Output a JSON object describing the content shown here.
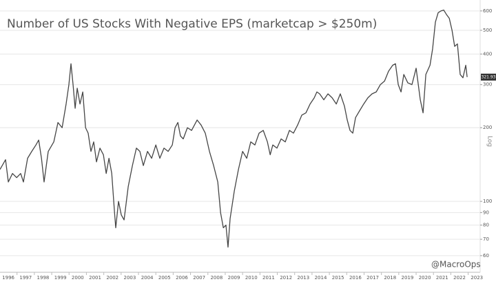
{
  "chart_data": {
    "type": "line",
    "title": "Number of US Stocks With Negative EPS (marketcap > $250m)",
    "watermark": "@MacroOps",
    "scale_label": "Log",
    "end_label": "321.93",
    "log_scale": true,
    "grid": true,
    "series": [
      {
        "name": "Number of US Stocks With Negative EPS",
        "color": "#444444",
        "x": [
          1995.52,
          1995.84,
          1996.0,
          1996.24,
          1996.48,
          1996.71,
          1996.87,
          1997.11,
          1997.35,
          1997.59,
          1997.75,
          1997.91,
          1998.06,
          1998.3,
          1998.62,
          1998.86,
          1999.1,
          1999.33,
          1999.49,
          1999.61,
          1999.73,
          1999.85,
          1999.97,
          2000.13,
          2000.29,
          2000.45,
          2000.6,
          2000.76,
          2000.92,
          2001.08,
          2001.28,
          2001.48,
          2001.64,
          2001.8,
          2001.96,
          2002.12,
          2002.19,
          2002.35,
          2002.51,
          2002.67,
          2002.91,
          2003.15,
          2003.38,
          2003.58,
          2003.78,
          2004.02,
          2004.26,
          2004.5,
          2004.73,
          2004.97,
          2005.21,
          2005.45,
          2005.61,
          2005.77,
          2005.92,
          2006.08,
          2006.32,
          2006.56,
          2006.88,
          2007.11,
          2007.35,
          2007.59,
          2007.83,
          2008.07,
          2008.23,
          2008.39,
          2008.54,
          2008.66,
          2008.78,
          2009.02,
          2009.26,
          2009.5,
          2009.74,
          2009.97,
          2010.21,
          2010.45,
          2010.69,
          2010.93,
          2011.09,
          2011.24,
          2011.48,
          2011.72,
          2011.96,
          2012.2,
          2012.43,
          2012.67,
          2012.91,
          2013.15,
          2013.39,
          2013.63,
          2013.78,
          2013.94,
          2014.18,
          2014.42,
          2014.66,
          2014.9,
          2015.13,
          2015.37,
          2015.53,
          2015.69,
          2015.85,
          2016.01,
          2016.25,
          2016.48,
          2016.72,
          2016.96,
          2017.2,
          2017.44,
          2017.68,
          2017.91,
          2018.15,
          2018.31,
          2018.47,
          2018.63,
          2018.79,
          2019.02,
          2019.26,
          2019.5,
          2019.74,
          2019.9,
          2020.06,
          2020.3,
          2020.45,
          2020.61,
          2020.77,
          2020.93,
          2021.09,
          2021.25,
          2021.41,
          2021.57,
          2021.72,
          2021.88,
          2022.04,
          2022.2,
          2022.36,
          2022.44
        ],
        "values": [
          135,
          148,
          120,
          130,
          125,
          130,
          120,
          150,
          160,
          170,
          178,
          150,
          120,
          160,
          175,
          210,
          200,
          250,
          300,
          365,
          300,
          240,
          290,
          250,
          280,
          200,
          190,
          160,
          175,
          145,
          165,
          155,
          130,
          150,
          130,
          90,
          78,
          100,
          88,
          84,
          115,
          140,
          165,
          160,
          140,
          160,
          150,
          170,
          150,
          165,
          160,
          170,
          200,
          210,
          185,
          180,
          200,
          195,
          215,
          205,
          190,
          160,
          140,
          120,
          90,
          78,
          80,
          65,
          85,
          110,
          135,
          160,
          150,
          175,
          170,
          190,
          195,
          175,
          155,
          170,
          165,
          180,
          175,
          195,
          190,
          205,
          225,
          230,
          250,
          265,
          280,
          275,
          260,
          275,
          265,
          250,
          275,
          245,
          215,
          195,
          190,
          220,
          235,
          250,
          265,
          275,
          280,
          300,
          310,
          340,
          360,
          365,
          300,
          280,
          330,
          305,
          300,
          350,
          260,
          230,
          330,
          360,
          420,
          540,
          590,
          600,
          605,
          580,
          560,
          500,
          430,
          440,
          330,
          320,
          360,
          321.93
        ]
      }
    ],
    "xlim": [
      1995.52,
      2023.19
    ],
    "xticks": [
      1996,
      1997,
      1998,
      1999,
      2000,
      2001,
      2002,
      2003,
      2004,
      2005,
      2006,
      2007,
      2008,
      2009,
      2010,
      2011,
      2012,
      2013,
      2014,
      2015,
      2016,
      2017,
      2018,
      2019,
      2020,
      2021,
      2022,
      2023
    ],
    "ylim": [
      53,
      665
    ],
    "yticks": [
      60,
      70,
      80,
      90,
      100,
      200,
      300,
      400,
      500,
      600
    ]
  }
}
